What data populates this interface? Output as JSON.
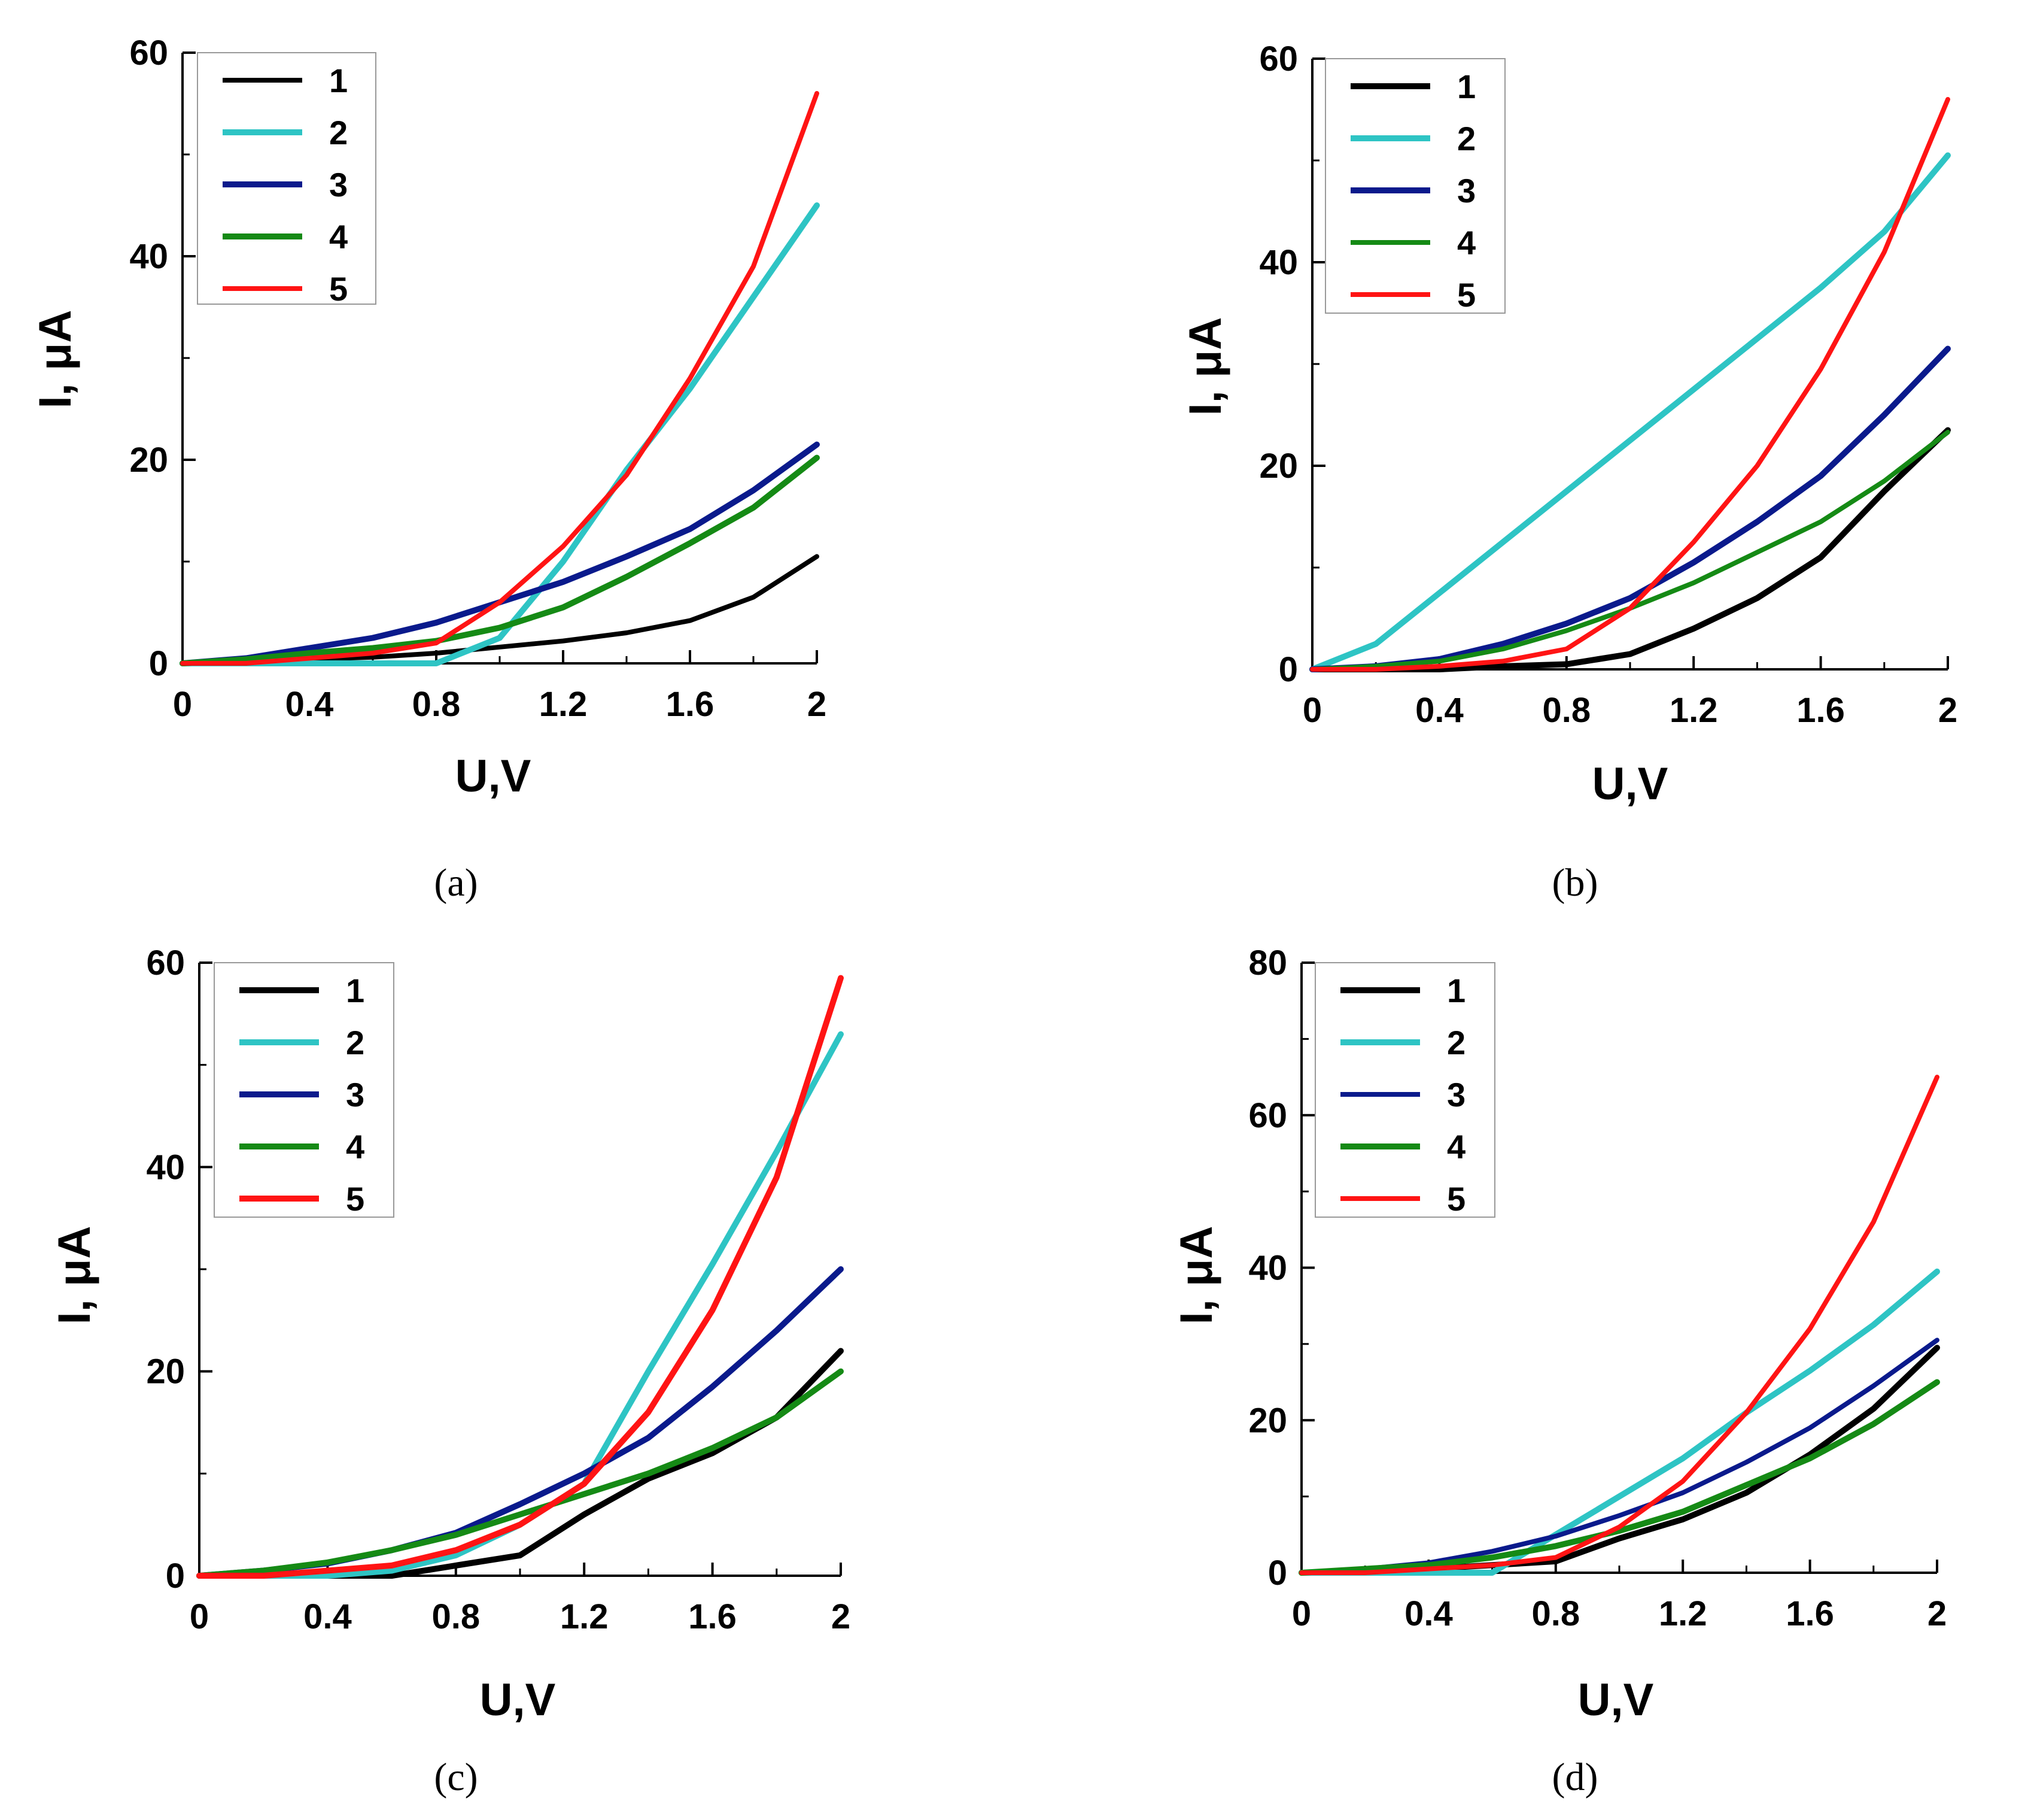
{
  "colors": {
    "1": "#000000",
    "2": "#2ec4c4",
    "3": "#0a1a8c",
    "4": "#158a15",
    "5": "#ff1414"
  },
  "chart_data": [
    {
      "panel": "(a)",
      "type": "line",
      "xlabel": "U,V",
      "ylabel": "I, μA",
      "xlim": [
        0,
        2
      ],
      "ylim": [
        0,
        60
      ],
      "xticks": [
        0,
        0.4,
        0.8,
        1.2,
        1.6,
        2
      ],
      "xtick_labels": [
        "0",
        "0.4",
        "0.8",
        "1.2",
        "1.6",
        "2"
      ],
      "yticks": [
        0,
        20,
        40,
        60
      ],
      "ytick_labels": [
        "0",
        "20",
        "40",
        "60"
      ],
      "legend_position": "top-left",
      "series": [
        {
          "name": "1",
          "color": "#000000",
          "width": 8,
          "x": [
            0,
            0.2,
            0.4,
            0.6,
            0.8,
            1.0,
            1.2,
            1.4,
            1.6,
            1.8,
            2.0
          ],
          "y": [
            0,
            0.2,
            0.4,
            0.6,
            1.0,
            1.6,
            2.2,
            3.0,
            4.2,
            6.5,
            10.5
          ]
        },
        {
          "name": "2",
          "color": "#2ec4c4",
          "width": 10,
          "x": [
            0,
            0.2,
            0.4,
            0.6,
            0.8,
            1.0,
            1.2,
            1.4,
            1.6,
            1.8,
            2.0
          ],
          "y": [
            0,
            0,
            0,
            0,
            0,
            2.5,
            10,
            19,
            27,
            36,
            45
          ]
        },
        {
          "name": "3",
          "color": "#0a1a8c",
          "width": 10,
          "x": [
            0,
            0.2,
            0.4,
            0.6,
            0.8,
            1.0,
            1.2,
            1.4,
            1.6,
            1.8,
            2.0
          ],
          "y": [
            0,
            0.5,
            1.5,
            2.5,
            4,
            6,
            8,
            10.5,
            13.2,
            17,
            21.5
          ]
        },
        {
          "name": "4",
          "color": "#158a15",
          "width": 10,
          "x": [
            0,
            0.2,
            0.4,
            0.6,
            0.8,
            1.0,
            1.2,
            1.4,
            1.6,
            1.8,
            2.0
          ],
          "y": [
            0,
            0.4,
            1,
            1.5,
            2.2,
            3.5,
            5.5,
            8.5,
            11.8,
            15.3,
            20.2
          ]
        },
        {
          "name": "5",
          "color": "#ff1414",
          "width": 8,
          "x": [
            0,
            0.2,
            0.4,
            0.6,
            0.8,
            1.0,
            1.2,
            1.4,
            1.6,
            1.8,
            2.0
          ],
          "y": [
            0,
            0,
            0.5,
            1,
            2,
            6,
            11.5,
            18.5,
            28,
            39,
            56
          ]
        }
      ]
    },
    {
      "panel": "(b)",
      "type": "line",
      "xlabel": "U,V",
      "ylabel": "I, μA",
      "xlim": [
        0,
        2
      ],
      "ylim": [
        0,
        60
      ],
      "xticks": [
        0,
        0.4,
        0.8,
        1.2,
        1.6,
        2
      ],
      "xtick_labels": [
        "0",
        "0.4",
        "0.8",
        "1.2",
        "1.6",
        "2"
      ],
      "yticks": [
        0,
        20,
        40,
        60
      ],
      "ytick_labels": [
        "0",
        "20",
        "40",
        "60"
      ],
      "legend_position": "top-left",
      "series": [
        {
          "name": "1",
          "color": "#000000",
          "width": 10,
          "x": [
            0,
            0.2,
            0.4,
            0.6,
            0.8,
            1.0,
            1.2,
            1.4,
            1.6,
            1.8,
            2.0
          ],
          "y": [
            0,
            0,
            0,
            0.3,
            0.5,
            1.5,
            4,
            7,
            11,
            17.5,
            23.5
          ]
        },
        {
          "name": "2",
          "color": "#2ec4c4",
          "width": 10,
          "x": [
            0,
            0.2,
            0.4,
            0.6,
            0.8,
            1.0,
            1.2,
            1.4,
            1.6,
            1.8,
            2.0
          ],
          "y": [
            0,
            2.5,
            7.5,
            12.5,
            17.5,
            22.5,
            27.5,
            32.5,
            37.5,
            43,
            50.5
          ]
        },
        {
          "name": "3",
          "color": "#0a1a8c",
          "width": 10,
          "x": [
            0,
            0.2,
            0.4,
            0.6,
            0.8,
            1.0,
            1.2,
            1.4,
            1.6,
            1.8,
            2.0
          ],
          "y": [
            0,
            0.3,
            1,
            2.5,
            4.5,
            7,
            10.5,
            14.5,
            19,
            25,
            31.5
          ]
        },
        {
          "name": "4",
          "color": "#158a15",
          "width": 8,
          "x": [
            0,
            0.2,
            0.4,
            0.6,
            0.8,
            1.0,
            1.2,
            1.4,
            1.6,
            1.8,
            2.0
          ],
          "y": [
            0,
            0.3,
            0.8,
            2,
            3.8,
            6,
            8.5,
            11.5,
            14.5,
            18.5,
            23.3
          ]
        },
        {
          "name": "5",
          "color": "#ff1414",
          "width": 8,
          "x": [
            0,
            0.2,
            0.4,
            0.6,
            0.8,
            1.0,
            1.2,
            1.4,
            1.6,
            1.8,
            2.0
          ],
          "y": [
            0,
            0,
            0.3,
            0.8,
            2,
            6,
            12.5,
            20,
            29.5,
            41,
            56
          ]
        }
      ]
    },
    {
      "panel": "(c)",
      "type": "line",
      "xlabel": "U,V",
      "ylabel": "I, μA",
      "xlim": [
        0,
        2
      ],
      "ylim": [
        0,
        60
      ],
      "xticks": [
        0,
        0.4,
        0.8,
        1.2,
        1.6,
        2
      ],
      "xtick_labels": [
        "0",
        "0.4",
        "0.8",
        "1.2",
        "1.6",
        "2"
      ],
      "yticks": [
        0,
        20,
        40,
        60
      ],
      "ytick_labels": [
        "0",
        "20",
        "40",
        "60"
      ],
      "legend_position": "top-left",
      "series": [
        {
          "name": "1",
          "color": "#000000",
          "width": 10,
          "x": [
            0,
            0.2,
            0.4,
            0.6,
            0.8,
            1.0,
            1.2,
            1.4,
            1.6,
            1.8,
            2.0
          ],
          "y": [
            0,
            0,
            0,
            0,
            1,
            2,
            6,
            9.5,
            12,
            15.5,
            22
          ]
        },
        {
          "name": "2",
          "color": "#2ec4c4",
          "width": 10,
          "x": [
            0,
            0.2,
            0.4,
            0.6,
            0.8,
            1.0,
            1.2,
            1.4,
            1.6,
            1.8,
            2.0
          ],
          "y": [
            0,
            0,
            0,
            0.5,
            2,
            5,
            9,
            20,
            30.5,
            41.5,
            53
          ]
        },
        {
          "name": "3",
          "color": "#0a1a8c",
          "width": 10,
          "x": [
            0,
            0.2,
            0.4,
            0.6,
            0.8,
            1.0,
            1.2,
            1.4,
            1.6,
            1.8,
            2.0
          ],
          "y": [
            0,
            0.5,
            1.2,
            2.5,
            4.2,
            7,
            10,
            13.5,
            18.5,
            24,
            30
          ]
        },
        {
          "name": "4",
          "color": "#158a15",
          "width": 10,
          "x": [
            0,
            0.2,
            0.4,
            0.6,
            0.8,
            1.0,
            1.2,
            1.4,
            1.6,
            1.8,
            2.0
          ],
          "y": [
            0,
            0.5,
            1.3,
            2.5,
            4,
            6,
            8,
            10,
            12.5,
            15.5,
            20
          ]
        },
        {
          "name": "5",
          "color": "#ff1414",
          "width": 10,
          "x": [
            0,
            0.2,
            0.4,
            0.6,
            0.8,
            1.0,
            1.2,
            1.4,
            1.6,
            1.8,
            2.0
          ],
          "y": [
            0,
            0,
            0.5,
            1,
            2.5,
            5,
            9,
            16,
            26,
            39,
            58.5
          ]
        }
      ]
    },
    {
      "panel": "(d)",
      "type": "line",
      "xlabel": "U,V",
      "ylabel": "I, μA",
      "xlim": [
        0,
        2
      ],
      "ylim": [
        0,
        80
      ],
      "xticks": [
        0,
        0.4,
        0.8,
        1.2,
        1.6,
        2
      ],
      "xtick_labels": [
        "0",
        "0.4",
        "0.8",
        "1.2",
        "1.6",
        "2"
      ],
      "yticks": [
        0,
        20,
        40,
        60,
        80
      ],
      "ytick_labels": [
        "0",
        "20",
        "40",
        "60",
        "80"
      ],
      "legend_position": "top-left",
      "series": [
        {
          "name": "1",
          "color": "#000000",
          "width": 10,
          "x": [
            0,
            0.2,
            0.4,
            0.6,
            0.8,
            1.0,
            1.2,
            1.4,
            1.6,
            1.8,
            2.0
          ],
          "y": [
            0,
            0,
            0.5,
            1,
            1.5,
            4.5,
            7,
            10.5,
            15.5,
            21.5,
            29.5
          ]
        },
        {
          "name": "2",
          "color": "#2ec4c4",
          "width": 10,
          "x": [
            0,
            0.2,
            0.4,
            0.6,
            0.8,
            1.0,
            1.2,
            1.4,
            1.6,
            1.8,
            2.0
          ],
          "y": [
            0,
            0,
            0,
            0,
            5,
            10,
            15,
            21,
            26.5,
            32.5,
            39.5
          ]
        },
        {
          "name": "3",
          "color": "#0a1a8c",
          "width": 8,
          "x": [
            0,
            0.2,
            0.4,
            0.6,
            0.8,
            1.0,
            1.2,
            1.4,
            1.6,
            1.8,
            2.0
          ],
          "y": [
            0,
            0.5,
            1.3,
            2.8,
            4.8,
            7.5,
            10.5,
            14.5,
            19,
            24.5,
            30.5
          ]
        },
        {
          "name": "4",
          "color": "#158a15",
          "width": 10,
          "x": [
            0,
            0.2,
            0.4,
            0.6,
            0.8,
            1.0,
            1.2,
            1.4,
            1.6,
            1.8,
            2.0
          ],
          "y": [
            0,
            0.5,
            1,
            2,
            3.5,
            5.5,
            8,
            11.5,
            15,
            19.5,
            25
          ]
        },
        {
          "name": "5",
          "color": "#ff1414",
          "width": 8,
          "x": [
            0,
            0.2,
            0.4,
            0.6,
            0.8,
            1.0,
            1.2,
            1.4,
            1.6,
            1.8,
            2.0
          ],
          "y": [
            0,
            0,
            0.5,
            1,
            2,
            6,
            12,
            21,
            32,
            46,
            65
          ]
        }
      ]
    }
  ]
}
